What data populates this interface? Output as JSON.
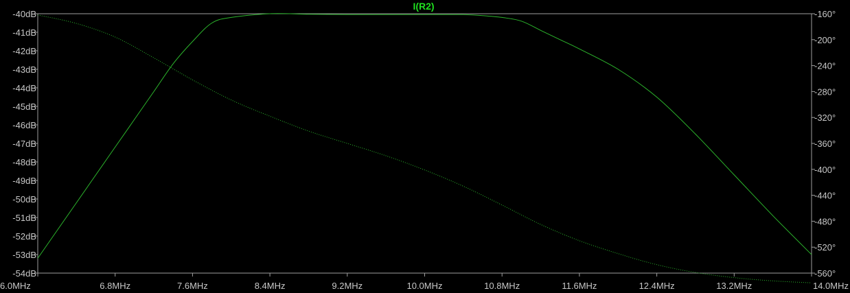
{
  "chart_data": {
    "type": "line",
    "title": "I(R2)",
    "x_axis": {
      "label": "",
      "range": [
        6.0,
        14.0
      ],
      "unit": "MHz",
      "ticks": [
        "6.0MHz",
        "6.8MHz",
        "7.6MHz",
        "8.4MHz",
        "9.2MHz",
        "10.0MHz",
        "10.8MHz",
        "11.6MHz",
        "12.4MHz",
        "13.2MHz",
        "14.0MHz"
      ]
    },
    "y_axis_left": {
      "label": "",
      "range": [
        -54,
        -40
      ],
      "unit": "dB",
      "ticks": [
        "-40dB",
        "-41dB",
        "-42dB",
        "-43dB",
        "-44dB",
        "-45dB",
        "-46dB",
        "-47dB",
        "-48dB",
        "-49dB",
        "-50dB",
        "-51dB",
        "-52dB",
        "-53dB",
        "-54dB"
      ]
    },
    "y_axis_right": {
      "label": "",
      "range": [
        -560,
        -160
      ],
      "unit": "°",
      "ticks": [
        "-160°",
        "-200°",
        "-240°",
        "-280°",
        "-320°",
        "-360°",
        "-400°",
        "-440°",
        "-480°",
        "-520°",
        "-560°"
      ]
    },
    "series": [
      {
        "name": "I(R2)",
        "kind": "magnitude",
        "axis": "left",
        "style": "solid",
        "x": [
          6.0,
          6.4,
          6.8,
          7.0,
          7.2,
          7.4,
          7.6,
          7.8,
          8.0,
          8.4,
          8.8,
          9.2,
          9.6,
          10.0,
          10.4,
          10.6,
          10.8,
          11.0,
          11.2,
          11.4,
          11.6,
          12.0,
          12.4,
          12.8,
          13.2,
          13.6,
          14.0
        ],
        "y": [
          -53.2,
          -50.2,
          -47.2,
          -45.7,
          -44.2,
          -42.7,
          -41.5,
          -40.5,
          -40.2,
          -40.0,
          -40.03,
          -40.05,
          -40.05,
          -40.05,
          -40.05,
          -40.1,
          -40.2,
          -40.4,
          -40.9,
          -41.4,
          -41.9,
          -43.0,
          -44.5,
          -46.5,
          -48.7,
          -50.9,
          -53.0
        ]
      },
      {
        "name": "",
        "kind": "phase",
        "axis": "right",
        "style": "dotted",
        "x": [
          6.0,
          6.4,
          6.8,
          7.2,
          7.6,
          8.0,
          8.4,
          8.8,
          9.2,
          9.6,
          10.0,
          10.4,
          10.8,
          11.2,
          11.6,
          12.0,
          12.4,
          12.8,
          13.2,
          13.6,
          14.0
        ],
        "y": [
          -162,
          -175,
          -196,
          -228,
          -262,
          -293,
          -318,
          -341,
          -360,
          -379,
          -401,
          -426,
          -455,
          -485,
          -510,
          -530,
          -547,
          -559,
          -567,
          -572,
          -575
        ]
      }
    ],
    "grid": false,
    "colors": {
      "background": "#000000",
      "axis": "#a0a0a0",
      "tick_text": "#c8c8c8",
      "trace": "#2cb52c",
      "title": "#1fe01f"
    }
  }
}
